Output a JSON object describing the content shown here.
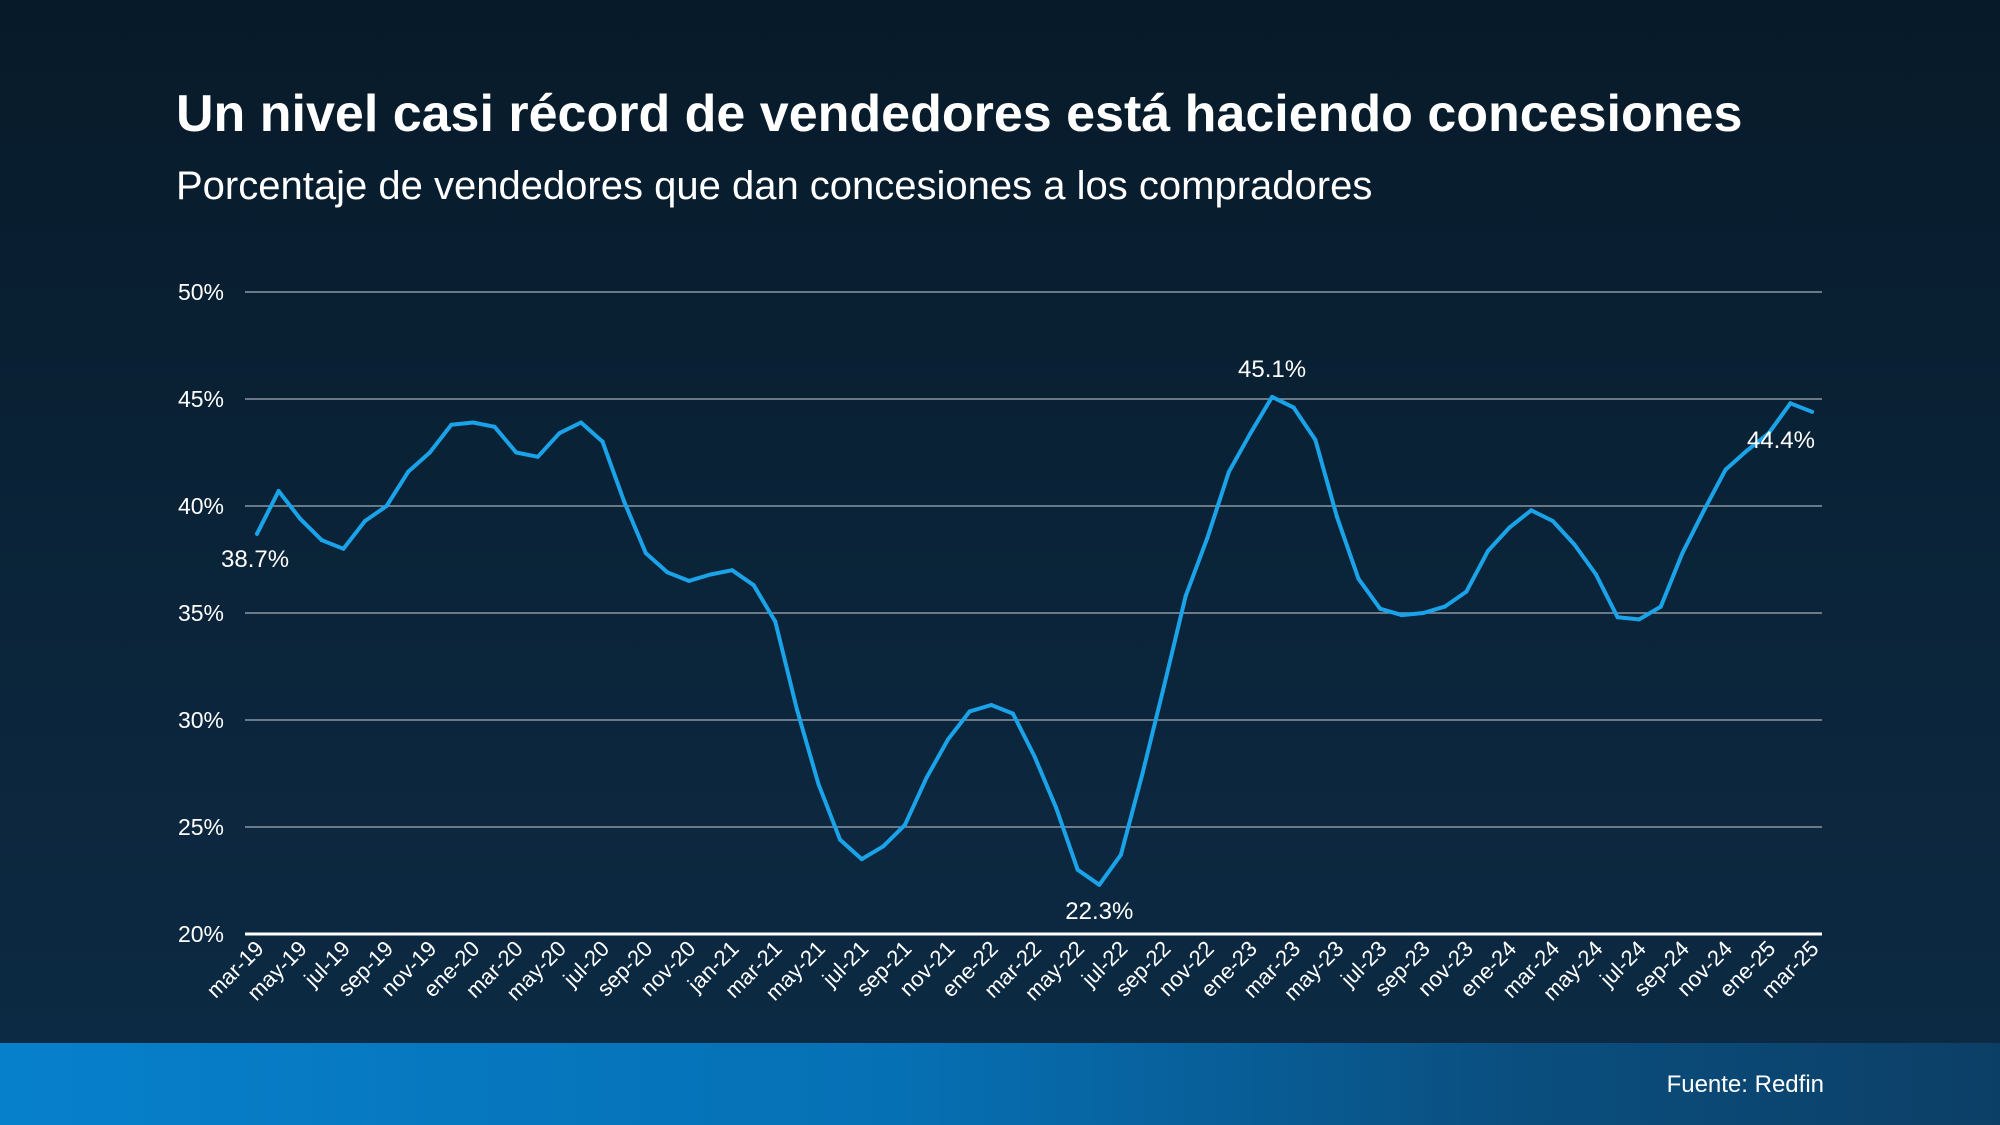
{
  "title": "Un nivel casi récord de vendedores está haciendo concesiones",
  "subtitle": "Porcentaje de vendedores que dan concesiones a los compradores",
  "source": "Fuente: Redfin",
  "colors": {
    "line": "#1aa3e8",
    "grid": "#8a96a3",
    "baseline": "#ffffff",
    "text": "#ffffff"
  },
  "chart_data": {
    "type": "line",
    "title": "Un nivel casi récord de vendedores está haciendo concesiones",
    "subtitle": "Porcentaje de vendedores que dan concesiones a los compradores",
    "xlabel": "",
    "ylabel": "",
    "ylim": [
      20,
      50
    ],
    "yticks": [
      20,
      25,
      30,
      35,
      40,
      45,
      50
    ],
    "ytick_labels": [
      "20%",
      "25%",
      "30%",
      "35%",
      "40%",
      "45%",
      "50%"
    ],
    "grid": true,
    "legend": "none",
    "x": [
      "mar-19",
      "abr-19",
      "may-19",
      "jun-19",
      "jul-19",
      "ago-19",
      "sep-19",
      "oct-19",
      "nov-19",
      "dic-19",
      "ene-20",
      "feb-20",
      "mar-20",
      "abr-20",
      "may-20",
      "jun-20",
      "jul-20",
      "ago-20",
      "sep-20",
      "oct-20",
      "nov-20",
      "dic-20",
      "jan-21",
      "feb-21",
      "mar-21",
      "abr-21",
      "may-21",
      "jun-21",
      "jul-21",
      "ago-21",
      "sep-21",
      "oct-21",
      "nov-21",
      "dic-21",
      "ene-22",
      "feb-22",
      "mar-22",
      "abr-22",
      "may-22",
      "jun-22",
      "jul-22",
      "ago-22",
      "sep-22",
      "oct-22",
      "nov-22",
      "dic-22",
      "ene-23",
      "feb-23",
      "mar-23",
      "abr-23",
      "may-23",
      "jun-23",
      "jul-23",
      "ago-23",
      "sep-23",
      "oct-23",
      "nov-23",
      "dic-23",
      "ene-24",
      "feb-24",
      "mar-24",
      "abr-24",
      "may-24",
      "jun-24",
      "jul-24",
      "ago-24",
      "sep-24",
      "oct-24",
      "nov-24",
      "dic-24",
      "ene-25",
      "feb-25",
      "mar-25"
    ],
    "xtick_labels": [
      "mar-19",
      "may-19",
      "jul-19",
      "sep-19",
      "nov-19",
      "ene-20",
      "mar-20",
      "may-20",
      "jul-20",
      "sep-20",
      "nov-20",
      "jan-21",
      "mar-21",
      "may-21",
      "jul-21",
      "sep-21",
      "nov-21",
      "ene-22",
      "mar-22",
      "may-22",
      "jul-22",
      "sep-22",
      "nov-22",
      "ene-23",
      "mar-23",
      "may-23",
      "jul-23",
      "sep-23",
      "nov-23",
      "ene-24",
      "mar-24",
      "may-24",
      "jul-24",
      "sep-24",
      "nov-24",
      "ene-25",
      "mar-25"
    ],
    "series": [
      {
        "values": [
          38.7,
          40.7,
          39.4,
          38.4,
          38.0,
          39.3,
          40.0,
          41.6,
          42.5,
          43.8,
          43.9,
          43.7,
          42.5,
          42.3,
          43.4,
          43.9,
          43.0,
          40.2,
          37.8,
          36.9,
          36.5,
          36.8,
          37.0,
          36.3,
          34.6,
          30.5,
          27.0,
          24.4,
          23.5,
          24.1,
          25.1,
          27.3,
          29.1,
          30.4,
          30.7,
          30.3,
          28.3,
          25.9,
          23.0,
          22.3,
          23.7,
          27.5,
          31.6,
          35.8,
          38.5,
          41.6,
          43.4,
          45.1,
          44.6,
          43.1,
          39.5,
          36.6,
          35.2,
          34.9,
          35.0,
          35.3,
          36.0,
          37.9,
          39.0,
          39.8,
          39.3,
          38.2,
          36.8,
          34.8,
          34.7,
          35.3,
          37.8,
          39.8,
          41.7,
          42.6,
          43.4,
          44.8,
          44.4
        ]
      }
    ],
    "annotations": [
      {
        "x": "mar-19",
        "y": 38.7,
        "label": "38.7%"
      },
      {
        "x": "feb-23",
        "y": 45.1,
        "label": "45.1%"
      },
      {
        "x": "jun-22",
        "y": 22.3,
        "label": "22.3%"
      },
      {
        "x": "mar-25",
        "y": 44.4,
        "label": "44.4%"
      }
    ]
  }
}
